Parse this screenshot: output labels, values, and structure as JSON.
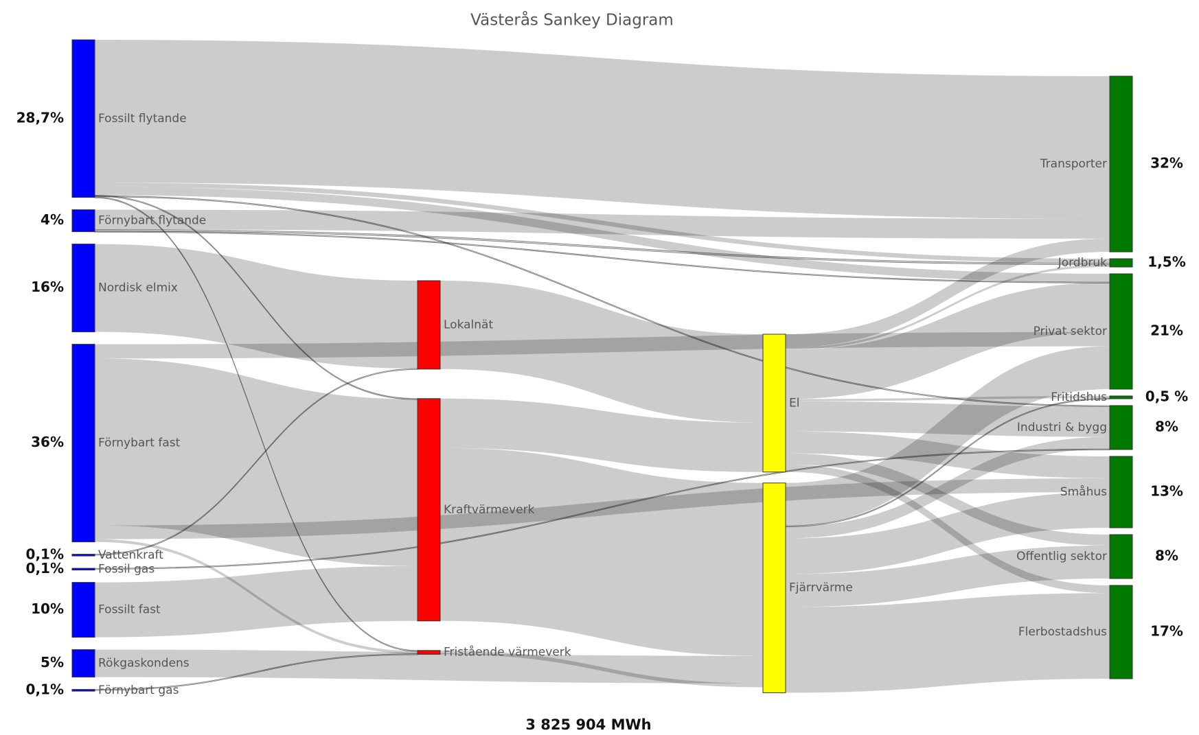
{
  "chart_data": {
    "type": "sankey",
    "title": "Västerås Sankey Diagram",
    "total_label": "3 825 904 MWh",
    "link_color": "rgba(0,0,0,0.2)",
    "nodes": [
      {
        "name": "Fossilt flytande",
        "color": "#0000ff",
        "value": 28.7,
        "value_label": "28,7%"
      },
      {
        "name": "Förnybart flytande",
        "color": "#0000ff",
        "value": 4,
        "value_label": "4%"
      },
      {
        "name": "Nordisk elmix",
        "color": "#0000ff",
        "value": 16,
        "value_label": "16%"
      },
      {
        "name": "Förnybart fast",
        "color": "#0000ff",
        "value": 36,
        "value_label": "36%"
      },
      {
        "name": "Vattenkraft",
        "color": "#0000ff",
        "value": 0.1,
        "value_label": "0,1%"
      },
      {
        "name": "Fossil gas",
        "color": "#0000ff",
        "value": 0.1,
        "value_label": "0,1%"
      },
      {
        "name": "Fossilt fast",
        "color": "#0000ff",
        "value": 10,
        "value_label": "10%"
      },
      {
        "name": "Rökgaskondens",
        "color": "#0000ff",
        "value": 5,
        "value_label": "5%"
      },
      {
        "name": "Förnybart gas",
        "color": "#0000ff",
        "value": 0.1,
        "value_label": "0,1%"
      },
      {
        "name": "Lokalnät",
        "color": "#ff0000"
      },
      {
        "name": "Kraftvärmeverk",
        "color": "#ff0000"
      },
      {
        "name": "Fristående värmeverk",
        "color": "#ff0000"
      },
      {
        "name": "El",
        "color": "#ffff00"
      },
      {
        "name": "Fjärrvärme",
        "color": "#ffff00"
      },
      {
        "name": "Transporter",
        "color": "#007a00",
        "value": 32,
        "value_label": "32%"
      },
      {
        "name": "Jordbruk",
        "color": "#007a00",
        "value": 1.5,
        "value_label": "1,5%"
      },
      {
        "name": "Privat sektor",
        "color": "#007a00",
        "value": 21,
        "value_label": "21%"
      },
      {
        "name": "Fritidshus",
        "color": "#007a00",
        "value": 0.5,
        "value_label": "0,5 %"
      },
      {
        "name": "Industri & bygg",
        "color": "#007a00",
        "value": 8,
        "value_label": "8%"
      },
      {
        "name": "Småhus",
        "color": "#007a00",
        "value": 13,
        "value_label": "13%"
      },
      {
        "name": "Offentlig sektor",
        "color": "#007a00",
        "value": 8,
        "value_label": "8%"
      },
      {
        "name": "Flerbostadshus",
        "color": "#007a00",
        "value": 17,
        "value_label": "17%"
      }
    ],
    "links": [
      {
        "source": 0,
        "target": 14,
        "value": 26
      },
      {
        "source": 0,
        "target": 16,
        "value": 1.5
      },
      {
        "source": 0,
        "target": 15,
        "value": 0.8
      },
      {
        "source": 0,
        "target": 18,
        "value": 0.2
      },
      {
        "source": 0,
        "target": 10,
        "value": 0.1
      },
      {
        "source": 0,
        "target": 11,
        "value": 0.1
      },
      {
        "source": 1,
        "target": 14,
        "value": 3.6
      },
      {
        "source": 1,
        "target": 15,
        "value": 0.3
      },
      {
        "source": 1,
        "target": 16,
        "value": 0.1
      },
      {
        "source": 2,
        "target": 9,
        "value": 16
      },
      {
        "source": 3,
        "target": 10,
        "value": 30.4
      },
      {
        "source": 3,
        "target": 19,
        "value": 2.5
      },
      {
        "source": 3,
        "target": 16,
        "value": 2.6
      },
      {
        "source": 3,
        "target": 11,
        "value": 0.5
      },
      {
        "source": 4,
        "target": 9,
        "value": 0.1
      },
      {
        "source": 5,
        "target": 18,
        "value": 0.1
      },
      {
        "source": 6,
        "target": 10,
        "value": 10
      },
      {
        "source": 7,
        "target": 13,
        "value": 5
      },
      {
        "source": 8,
        "target": 11,
        "value": 0.1
      },
      {
        "source": 10,
        "target": 12,
        "value": 9
      },
      {
        "source": 10,
        "target": 13,
        "value": 31.5
      },
      {
        "source": 9,
        "target": 12,
        "value": 16.1
      },
      {
        "source": 11,
        "target": 13,
        "value": 0.7
      },
      {
        "source": 12,
        "target": 14,
        "value": 2.4
      },
      {
        "source": 12,
        "target": 15,
        "value": 0.4
      },
      {
        "source": 12,
        "target": 16,
        "value": 9
      },
      {
        "source": 12,
        "target": 17,
        "value": 0.4
      },
      {
        "source": 12,
        "target": 18,
        "value": 5.5
      },
      {
        "source": 12,
        "target": 19,
        "value": 4
      },
      {
        "source": 12,
        "target": 20,
        "value": 2
      },
      {
        "source": 12,
        "target": 21,
        "value": 1.4
      },
      {
        "source": 13,
        "target": 16,
        "value": 7.8
      },
      {
        "source": 13,
        "target": 17,
        "value": 0.1
      },
      {
        "source": 13,
        "target": 18,
        "value": 2.2
      },
      {
        "source": 13,
        "target": 19,
        "value": 6.5
      },
      {
        "source": 13,
        "target": 20,
        "value": 6
      },
      {
        "source": 13,
        "target": 21,
        "value": 15.6
      }
    ]
  }
}
